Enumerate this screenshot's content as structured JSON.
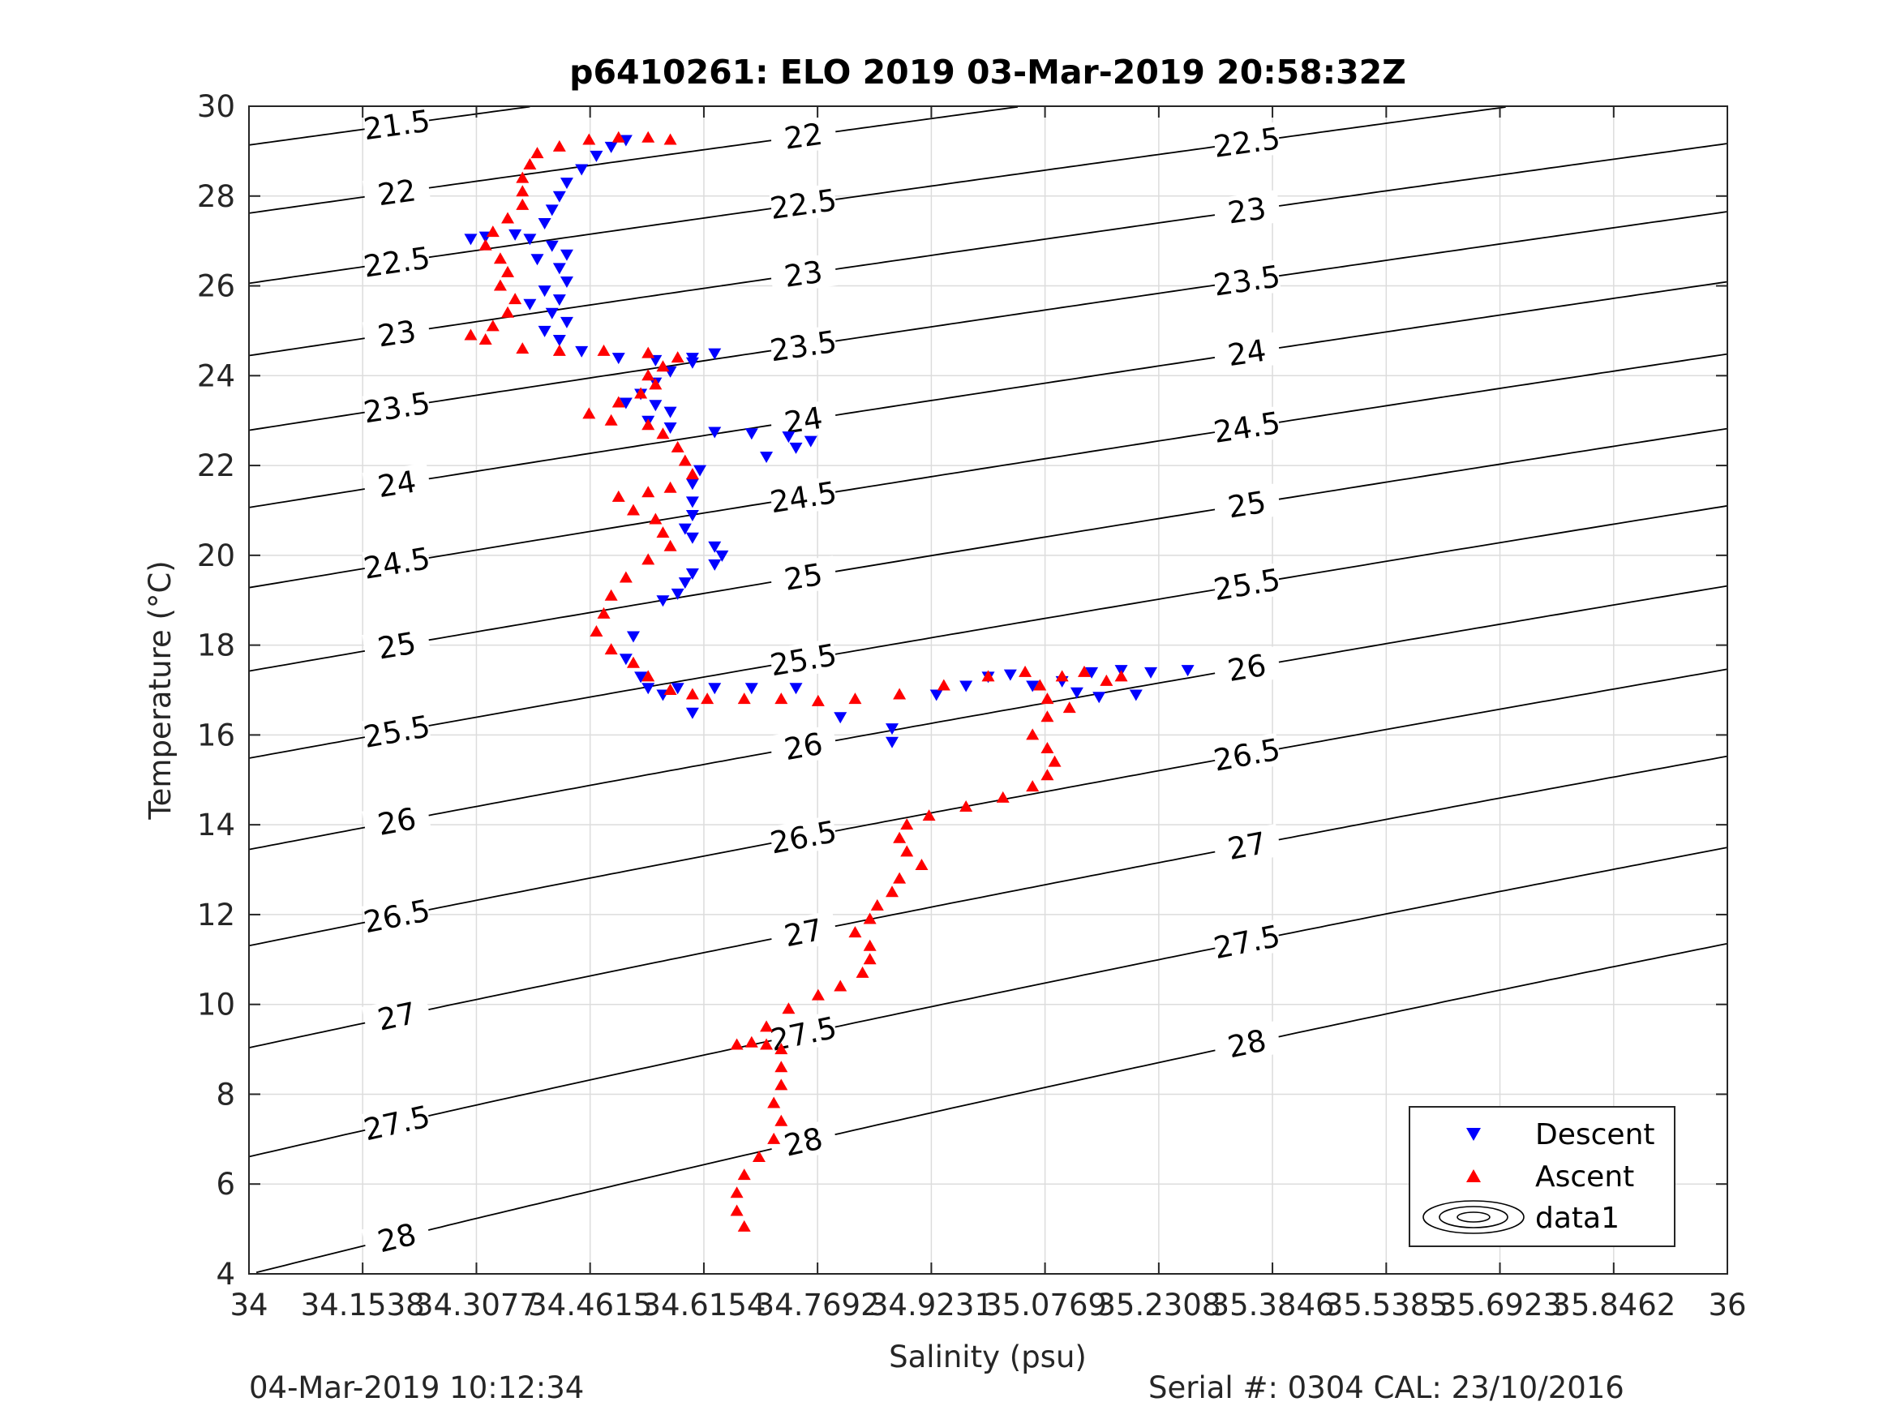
{
  "chart_data": {
    "type": "scatter",
    "title": "p6410261: ELO 2019 03-Mar-2019 20:58:32Z",
    "xlabel": "Salinity (psu)",
    "ylabel": "Temperature (°C)",
    "xlim": [
      34,
      36
    ],
    "ylim": [
      4,
      30
    ],
    "grid": true,
    "x_ticks": [
      34,
      34.1538,
      34.3077,
      34.4615,
      34.6154,
      34.7692,
      34.9231,
      35.0769,
      35.2308,
      35.3846,
      35.5385,
      35.6923,
      35.8462,
      36
    ],
    "x_tick_labels": [
      "34",
      "34.1538",
      "34.3077",
      "34.4615",
      "34.6154",
      "34.7692",
      "34.9231",
      "35.0769",
      "35.2308",
      "35.3846",
      "35.5385",
      "35.6923",
      "35.8462",
      "36"
    ],
    "y_ticks": [
      4,
      6,
      8,
      10,
      12,
      14,
      16,
      18,
      20,
      22,
      24,
      26,
      28,
      30
    ],
    "y_tick_labels": [
      "4",
      "6",
      "8",
      "10",
      "12",
      "14",
      "16",
      "18",
      "20",
      "22",
      "24",
      "26",
      "28",
      "30"
    ],
    "legend": {
      "placement": "bottom-right",
      "entries": [
        "Descent",
        "Ascent",
        "data1"
      ]
    },
    "series": [
      {
        "name": "Descent",
        "marker": "triangle-down",
        "color": "#0000ff",
        "points": [
          [
            34.51,
            29.25
          ],
          [
            34.49,
            29.1
          ],
          [
            34.47,
            28.9
          ],
          [
            34.45,
            28.6
          ],
          [
            34.43,
            28.3
          ],
          [
            34.42,
            28.0
          ],
          [
            34.41,
            27.7
          ],
          [
            34.4,
            27.4
          ],
          [
            34.36,
            27.15
          ],
          [
            34.32,
            27.1
          ],
          [
            34.3,
            27.05
          ],
          [
            34.38,
            27.05
          ],
          [
            34.41,
            26.9
          ],
          [
            34.43,
            26.7
          ],
          [
            34.39,
            26.6
          ],
          [
            34.42,
            26.4
          ],
          [
            34.43,
            26.1
          ],
          [
            34.4,
            25.9
          ],
          [
            34.42,
            25.7
          ],
          [
            34.38,
            25.6
          ],
          [
            34.41,
            25.4
          ],
          [
            34.43,
            25.2
          ],
          [
            34.4,
            25.0
          ],
          [
            34.42,
            24.8
          ],
          [
            34.45,
            24.55
          ],
          [
            34.5,
            24.4
          ],
          [
            34.55,
            24.35
          ],
          [
            34.6,
            24.4
          ],
          [
            34.63,
            24.5
          ],
          [
            34.6,
            24.3
          ],
          [
            34.57,
            24.1
          ],
          [
            34.55,
            23.85
          ],
          [
            34.53,
            23.6
          ],
          [
            34.51,
            23.4
          ],
          [
            34.55,
            23.35
          ],
          [
            34.57,
            23.2
          ],
          [
            34.54,
            23.0
          ],
          [
            34.57,
            22.85
          ],
          [
            34.63,
            22.75
          ],
          [
            34.68,
            22.72
          ],
          [
            34.73,
            22.65
          ],
          [
            34.76,
            22.55
          ],
          [
            34.74,
            22.4
          ],
          [
            34.7,
            22.2
          ],
          [
            34.61,
            21.9
          ],
          [
            34.6,
            21.6
          ],
          [
            34.6,
            21.2
          ],
          [
            34.6,
            20.9
          ],
          [
            34.59,
            20.6
          ],
          [
            34.6,
            20.4
          ],
          [
            34.63,
            20.2
          ],
          [
            34.64,
            20.0
          ],
          [
            34.63,
            19.8
          ],
          [
            34.6,
            19.6
          ],
          [
            34.59,
            19.4
          ],
          [
            34.58,
            19.15
          ],
          [
            34.56,
            19.0
          ],
          [
            34.52,
            18.2
          ],
          [
            34.51,
            17.7
          ],
          [
            34.53,
            17.3
          ],
          [
            34.54,
            17.05
          ],
          [
            34.56,
            16.9
          ],
          [
            34.58,
            17.05
          ],
          [
            34.6,
            16.5
          ],
          [
            34.63,
            17.05
          ],
          [
            34.68,
            17.05
          ],
          [
            34.74,
            17.05
          ],
          [
            34.8,
            16.4
          ],
          [
            34.87,
            16.15
          ],
          [
            34.87,
            15.85
          ],
          [
            34.93,
            16.9
          ],
          [
            34.97,
            17.1
          ],
          [
            35.0,
            17.3
          ],
          [
            35.03,
            17.35
          ],
          [
            35.06,
            17.1
          ],
          [
            35.1,
            17.2
          ],
          [
            35.14,
            17.4
          ],
          [
            35.18,
            17.45
          ],
          [
            35.22,
            17.4
          ],
          [
            35.27,
            17.45
          ],
          [
            35.12,
            16.95
          ],
          [
            35.15,
            16.85
          ],
          [
            35.2,
            16.9
          ]
        ]
      },
      {
        "name": "Ascent",
        "marker": "triangle-up",
        "color": "#ff0000",
        "points": [
          [
            34.67,
            5.05
          ],
          [
            34.66,
            5.4
          ],
          [
            34.66,
            5.8
          ],
          [
            34.67,
            6.2
          ],
          [
            34.69,
            6.6
          ],
          [
            34.71,
            7.0
          ],
          [
            34.72,
            7.4
          ],
          [
            34.71,
            7.8
          ],
          [
            34.72,
            8.2
          ],
          [
            34.72,
            8.6
          ],
          [
            34.72,
            9.0
          ],
          [
            34.7,
            9.1
          ],
          [
            34.68,
            9.15
          ],
          [
            34.66,
            9.1
          ],
          [
            34.7,
            9.5
          ],
          [
            34.73,
            9.9
          ],
          [
            34.77,
            10.2
          ],
          [
            34.8,
            10.4
          ],
          [
            34.83,
            10.7
          ],
          [
            34.84,
            11.0
          ],
          [
            34.84,
            11.3
          ],
          [
            34.82,
            11.6
          ],
          [
            34.84,
            11.9
          ],
          [
            34.85,
            12.2
          ],
          [
            34.87,
            12.5
          ],
          [
            34.88,
            12.8
          ],
          [
            34.91,
            13.1
          ],
          [
            34.89,
            13.4
          ],
          [
            34.88,
            13.7
          ],
          [
            34.89,
            14.0
          ],
          [
            34.92,
            14.2
          ],
          [
            34.97,
            14.4
          ],
          [
            35.02,
            14.6
          ],
          [
            35.06,
            14.85
          ],
          [
            35.08,
            15.1
          ],
          [
            35.09,
            15.4
          ],
          [
            35.08,
            15.7
          ],
          [
            35.06,
            16.0
          ],
          [
            35.08,
            16.4
          ],
          [
            35.11,
            16.6
          ],
          [
            35.08,
            16.8
          ],
          [
            35.07,
            17.1
          ],
          [
            35.1,
            17.3
          ],
          [
            35.13,
            17.4
          ],
          [
            35.16,
            17.2
          ],
          [
            35.18,
            17.3
          ],
          [
            35.05,
            17.4
          ],
          [
            35.0,
            17.3
          ],
          [
            34.94,
            17.1
          ],
          [
            34.88,
            16.9
          ],
          [
            34.82,
            16.8
          ],
          [
            34.77,
            16.75
          ],
          [
            34.72,
            16.8
          ],
          [
            34.67,
            16.8
          ],
          [
            34.62,
            16.8
          ],
          [
            34.6,
            16.9
          ],
          [
            34.57,
            17.0
          ],
          [
            34.54,
            17.3
          ],
          [
            34.52,
            17.6
          ],
          [
            34.49,
            17.9
          ],
          [
            34.47,
            18.3
          ],
          [
            34.48,
            18.7
          ],
          [
            34.49,
            19.1
          ],
          [
            34.51,
            19.5
          ],
          [
            34.54,
            19.9
          ],
          [
            34.57,
            20.2
          ],
          [
            34.56,
            20.5
          ],
          [
            34.55,
            20.8
          ],
          [
            34.52,
            21.0
          ],
          [
            34.5,
            21.3
          ],
          [
            34.54,
            21.4
          ],
          [
            34.57,
            21.5
          ],
          [
            34.6,
            21.8
          ],
          [
            34.59,
            22.1
          ],
          [
            34.58,
            22.4
          ],
          [
            34.56,
            22.7
          ],
          [
            34.54,
            22.9
          ],
          [
            34.49,
            23.0
          ],
          [
            34.46,
            23.15
          ],
          [
            34.5,
            23.4
          ],
          [
            34.53,
            23.6
          ],
          [
            34.55,
            23.8
          ],
          [
            34.54,
            24.0
          ],
          [
            34.56,
            24.2
          ],
          [
            34.58,
            24.4
          ],
          [
            34.54,
            24.5
          ],
          [
            34.48,
            24.55
          ],
          [
            34.42,
            24.55
          ],
          [
            34.37,
            24.6
          ],
          [
            34.32,
            24.8
          ],
          [
            34.3,
            24.9
          ],
          [
            34.33,
            25.1
          ],
          [
            34.35,
            25.4
          ],
          [
            34.36,
            25.7
          ],
          [
            34.34,
            26.0
          ],
          [
            34.35,
            26.3
          ],
          [
            34.34,
            26.6
          ],
          [
            34.32,
            26.9
          ],
          [
            34.33,
            27.2
          ],
          [
            34.35,
            27.5
          ],
          [
            34.37,
            27.8
          ],
          [
            34.37,
            28.1
          ],
          [
            34.37,
            28.4
          ],
          [
            34.38,
            28.7
          ],
          [
            34.39,
            28.95
          ],
          [
            34.42,
            29.1
          ],
          [
            34.46,
            29.25
          ],
          [
            34.5,
            29.3
          ],
          [
            34.54,
            29.3
          ],
          [
            34.57,
            29.25
          ]
        ]
      }
    ],
    "contours": {
      "name": "data1",
      "color": "#000000",
      "levels": [
        21.5,
        22,
        22.5,
        23,
        23.5,
        24,
        24.5,
        25,
        25.5,
        26,
        26.5,
        27,
        27.5,
        28
      ]
    }
  },
  "footer": {
    "left": "04-Mar-2019 10:12:34",
    "right": "Serial #: 0304  CAL: 23/10/2016"
  }
}
